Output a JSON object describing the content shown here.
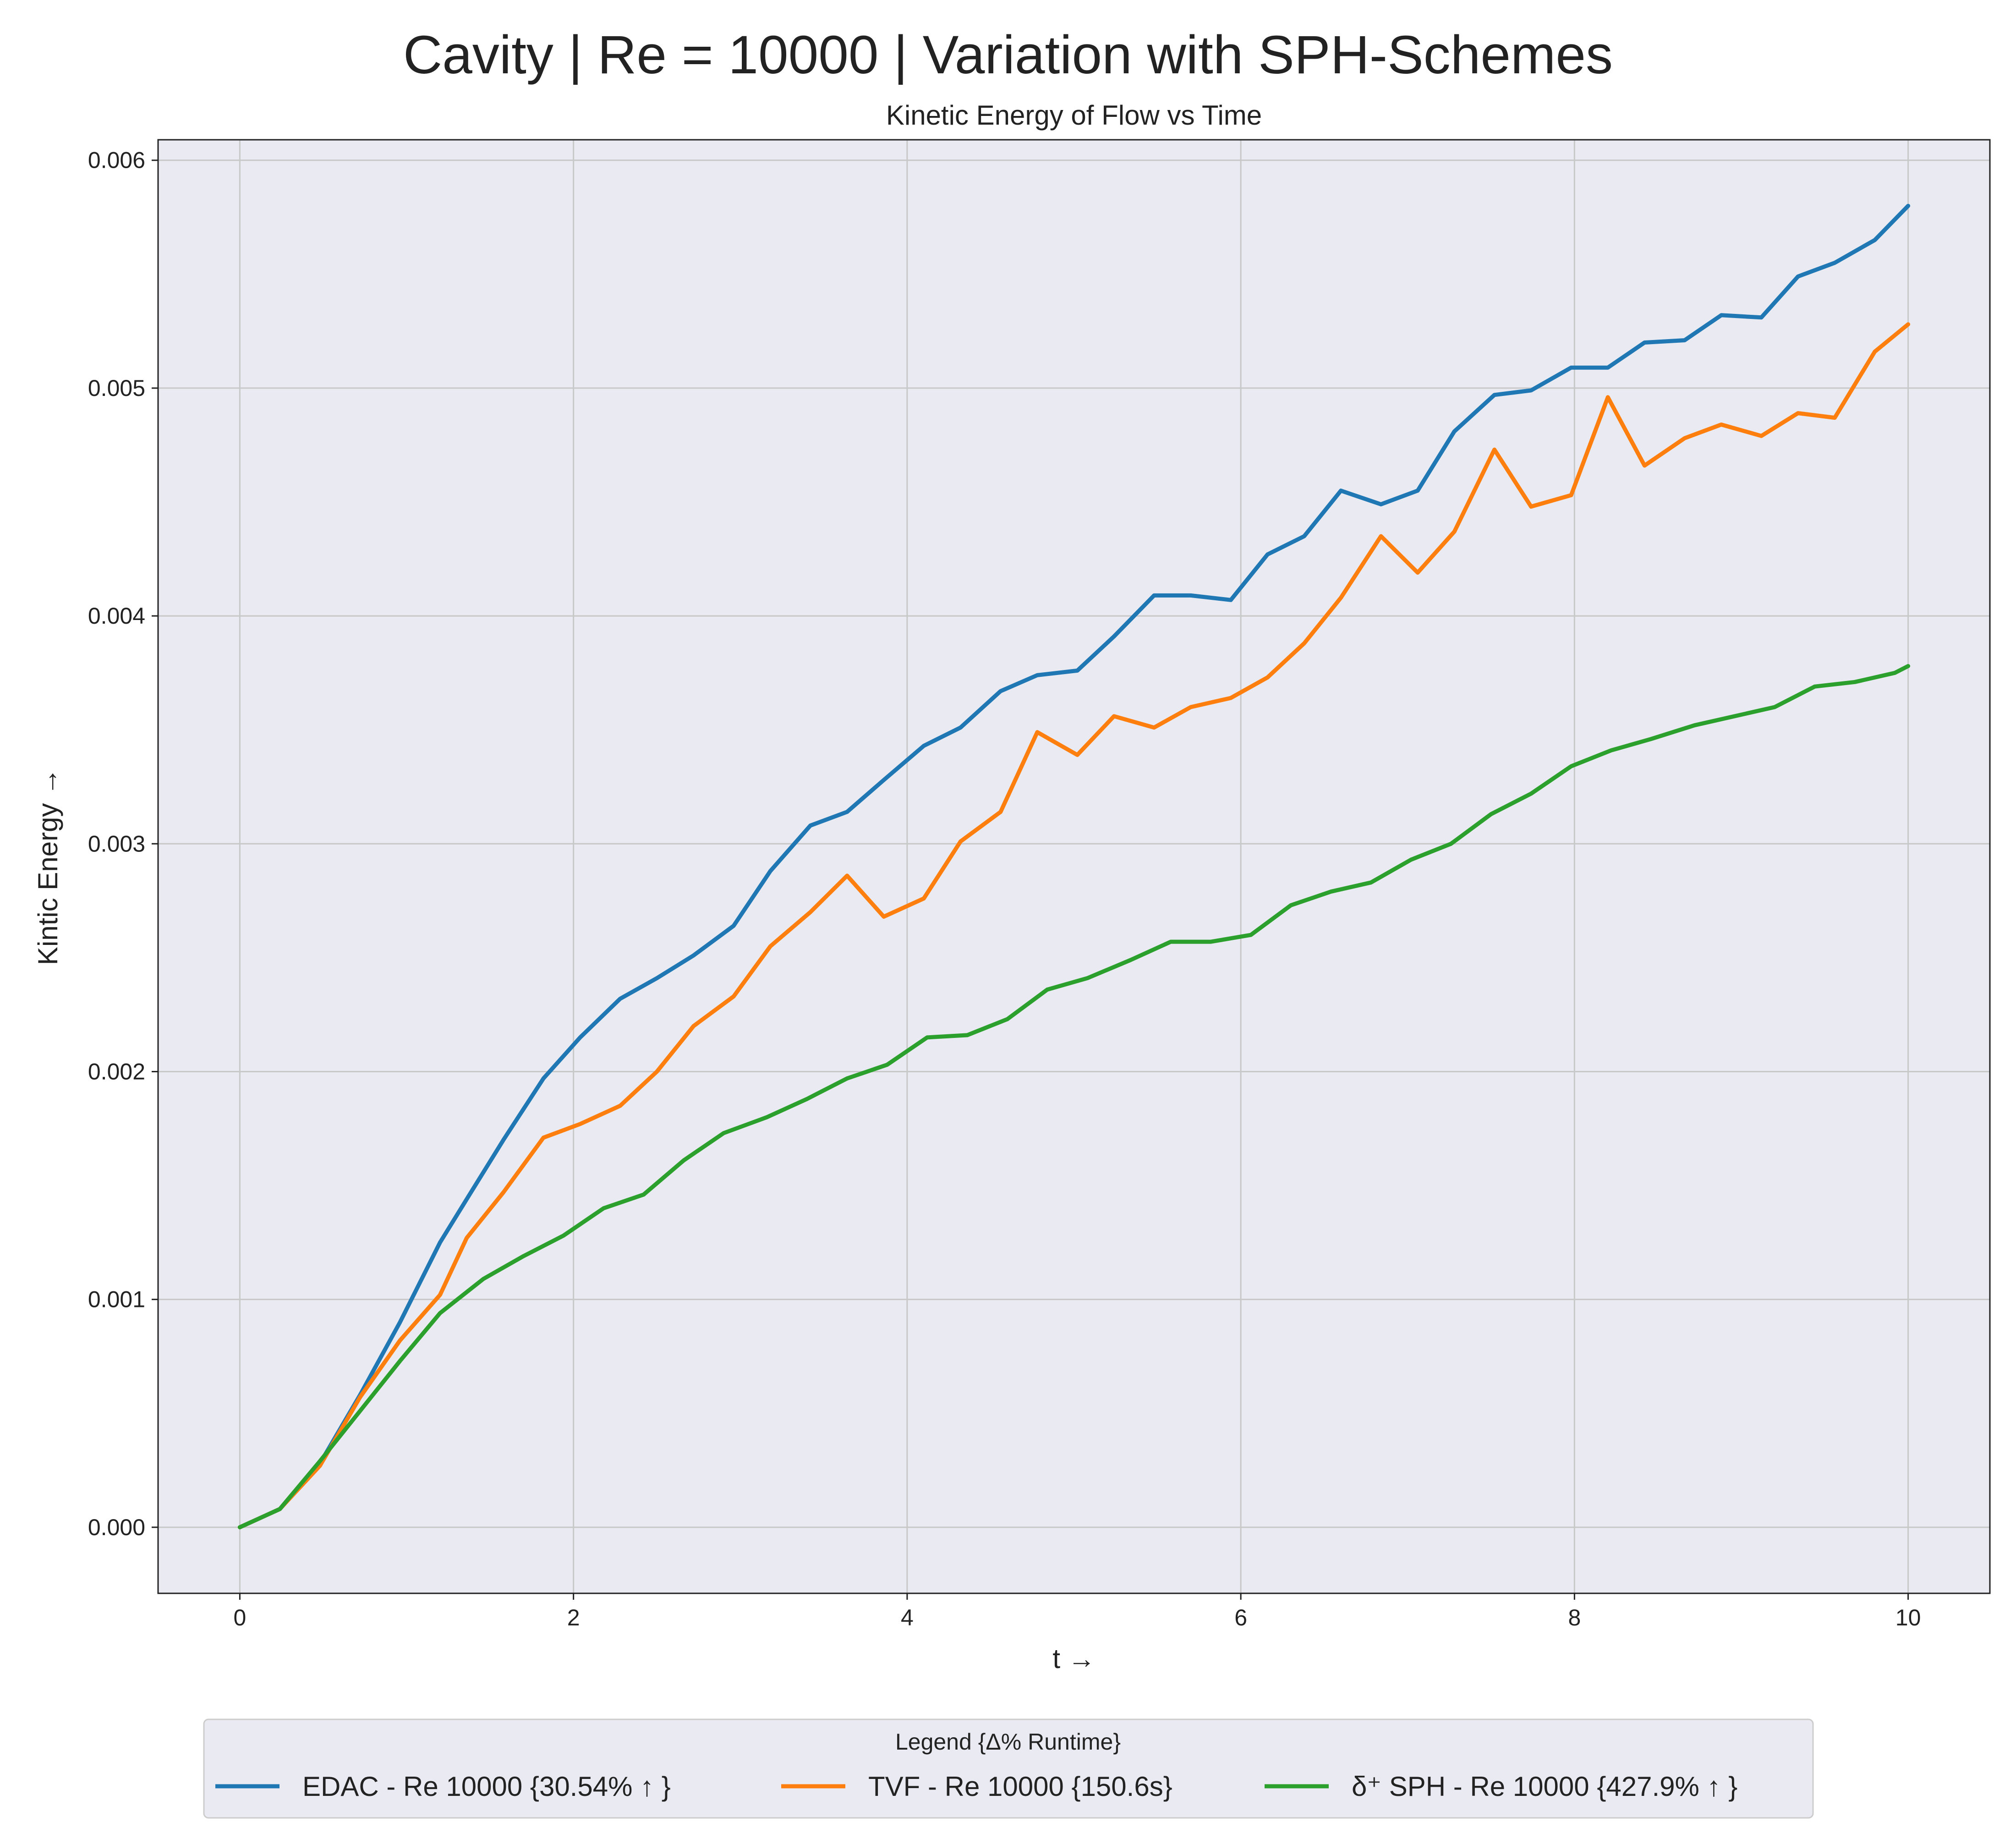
{
  "figure": {
    "suptitle": "Cavity | Re = 10000 | Variation with SPH-Schemes"
  },
  "chart_data": {
    "type": "line",
    "title": "Kinetic Energy of Flow vs Time",
    "xlabel": "t →",
    "ylabel": "Kintic Energy →",
    "xlim": [
      -0.49,
      10.49
    ],
    "ylim": [
      -0.00029,
      0.00609
    ],
    "xticks": [
      0,
      2,
      4,
      6,
      8,
      10
    ],
    "xtick_labels": [
      "0",
      "2",
      "4",
      "6",
      "8",
      "10"
    ],
    "yticks": [
      0,
      0.001,
      0.002,
      0.003,
      0.004,
      0.005,
      0.006
    ],
    "ytick_labels": [
      "0.000",
      "0.001",
      "0.002",
      "0.003",
      "0.004",
      "0.005",
      "0.006"
    ],
    "grid": true,
    "legend": {
      "title": "Legend {Δ% Runtime}",
      "placement": "bottom-center",
      "columns": 3
    },
    "series": [
      {
        "name": "EDAC - Re 10000 {30.54% ↑ }",
        "color": "#1f77b4",
        "x": [
          0,
          0.24,
          0.48,
          0.72,
          0.96,
          1.2,
          1.36,
          1.58,
          1.82,
          2.04,
          2.28,
          2.5,
          2.72,
          2.96,
          3.18,
          3.42,
          3.64,
          3.86,
          4.1,
          4.32,
          4.56,
          4.78,
          5.02,
          5.24,
          5.48,
          5.7,
          5.94,
          6.16,
          6.38,
          6.6,
          6.84,
          7.06,
          7.28,
          7.52,
          7.74,
          7.98,
          8.2,
          8.42,
          8.66,
          8.88,
          9.12,
          9.34,
          9.56,
          9.8,
          10
        ],
        "y": [
          0,
          8e-05,
          0.00028,
          0.00058,
          0.0009,
          0.00125,
          0.00144,
          0.0017,
          0.00197,
          0.00215,
          0.00232,
          0.00241,
          0.00251,
          0.00264,
          0.00288,
          0.00308,
          0.00314,
          0.00328,
          0.00343,
          0.00351,
          0.00367,
          0.00374,
          0.00376,
          0.00391,
          0.00409,
          0.00409,
          0.00407,
          0.00427,
          0.00435,
          0.00455,
          0.00449,
          0.00455,
          0.00481,
          0.00497,
          0.00499,
          0.00509,
          0.00509,
          0.0052,
          0.00521,
          0.00532,
          0.00531,
          0.00549,
          0.00555,
          0.00565,
          0.0058
        ]
      },
      {
        "name": "TVF - Re 10000 {150.6s}",
        "color": "#ff7f0e",
        "x": [
          0,
          0.24,
          0.48,
          0.72,
          0.96,
          1.2,
          1.36,
          1.58,
          1.82,
          2.04,
          2.28,
          2.5,
          2.72,
          2.96,
          3.18,
          3.42,
          3.64,
          3.86,
          4.1,
          4.32,
          4.56,
          4.78,
          5.02,
          5.24,
          5.48,
          5.7,
          5.94,
          6.16,
          6.38,
          6.6,
          6.84,
          7.06,
          7.28,
          7.52,
          7.74,
          7.98,
          8.2,
          8.42,
          8.66,
          8.88,
          9.12,
          9.34,
          9.56,
          9.8,
          10
        ],
        "y": [
          0,
          8e-05,
          0.00027,
          0.00057,
          0.00082,
          0.00102,
          0.00127,
          0.00147,
          0.00171,
          0.00177,
          0.00185,
          0.002,
          0.0022,
          0.00233,
          0.00255,
          0.0027,
          0.00286,
          0.00268,
          0.00276,
          0.00301,
          0.00314,
          0.00349,
          0.00339,
          0.00356,
          0.00351,
          0.0036,
          0.00364,
          0.00373,
          0.00388,
          0.00408,
          0.00435,
          0.00419,
          0.00437,
          0.00473,
          0.00448,
          0.00453,
          0.00496,
          0.00466,
          0.00478,
          0.00484,
          0.00479,
          0.00489,
          0.00487,
          0.00516,
          0.00528
        ]
      },
      {
        "name": "δ⁺ SPH - Re 10000 {427.9% ↑ }",
        "color": "#2ca02c",
        "x": [
          0,
          0.24,
          0.48,
          0.72,
          0.96,
          1.2,
          1.46,
          1.7,
          1.94,
          2.18,
          2.42,
          2.66,
          2.9,
          3.16,
          3.4,
          3.64,
          3.88,
          4.12,
          4.36,
          4.6,
          4.84,
          5.08,
          5.34,
          5.58,
          5.82,
          6.06,
          6.3,
          6.54,
          6.78,
          7.02,
          7.26,
          7.5,
          7.74,
          7.98,
          8.22,
          8.46,
          8.72,
          8.96,
          9.2,
          9.44,
          9.68,
          9.92,
          10
        ],
        "y": [
          0,
          8e-05,
          0.00029,
          0.00051,
          0.00073,
          0.00094,
          0.00109,
          0.00119,
          0.00128,
          0.0014,
          0.00146,
          0.00161,
          0.00173,
          0.0018,
          0.00188,
          0.00197,
          0.00203,
          0.00215,
          0.00216,
          0.00223,
          0.00236,
          0.00241,
          0.00249,
          0.00257,
          0.00257,
          0.0026,
          0.00273,
          0.00279,
          0.00283,
          0.00293,
          0.003,
          0.00313,
          0.00322,
          0.00334,
          0.00341,
          0.00346,
          0.00352,
          0.00356,
          0.0036,
          0.00369,
          0.00371,
          0.00375,
          0.00378
        ]
      }
    ]
  }
}
